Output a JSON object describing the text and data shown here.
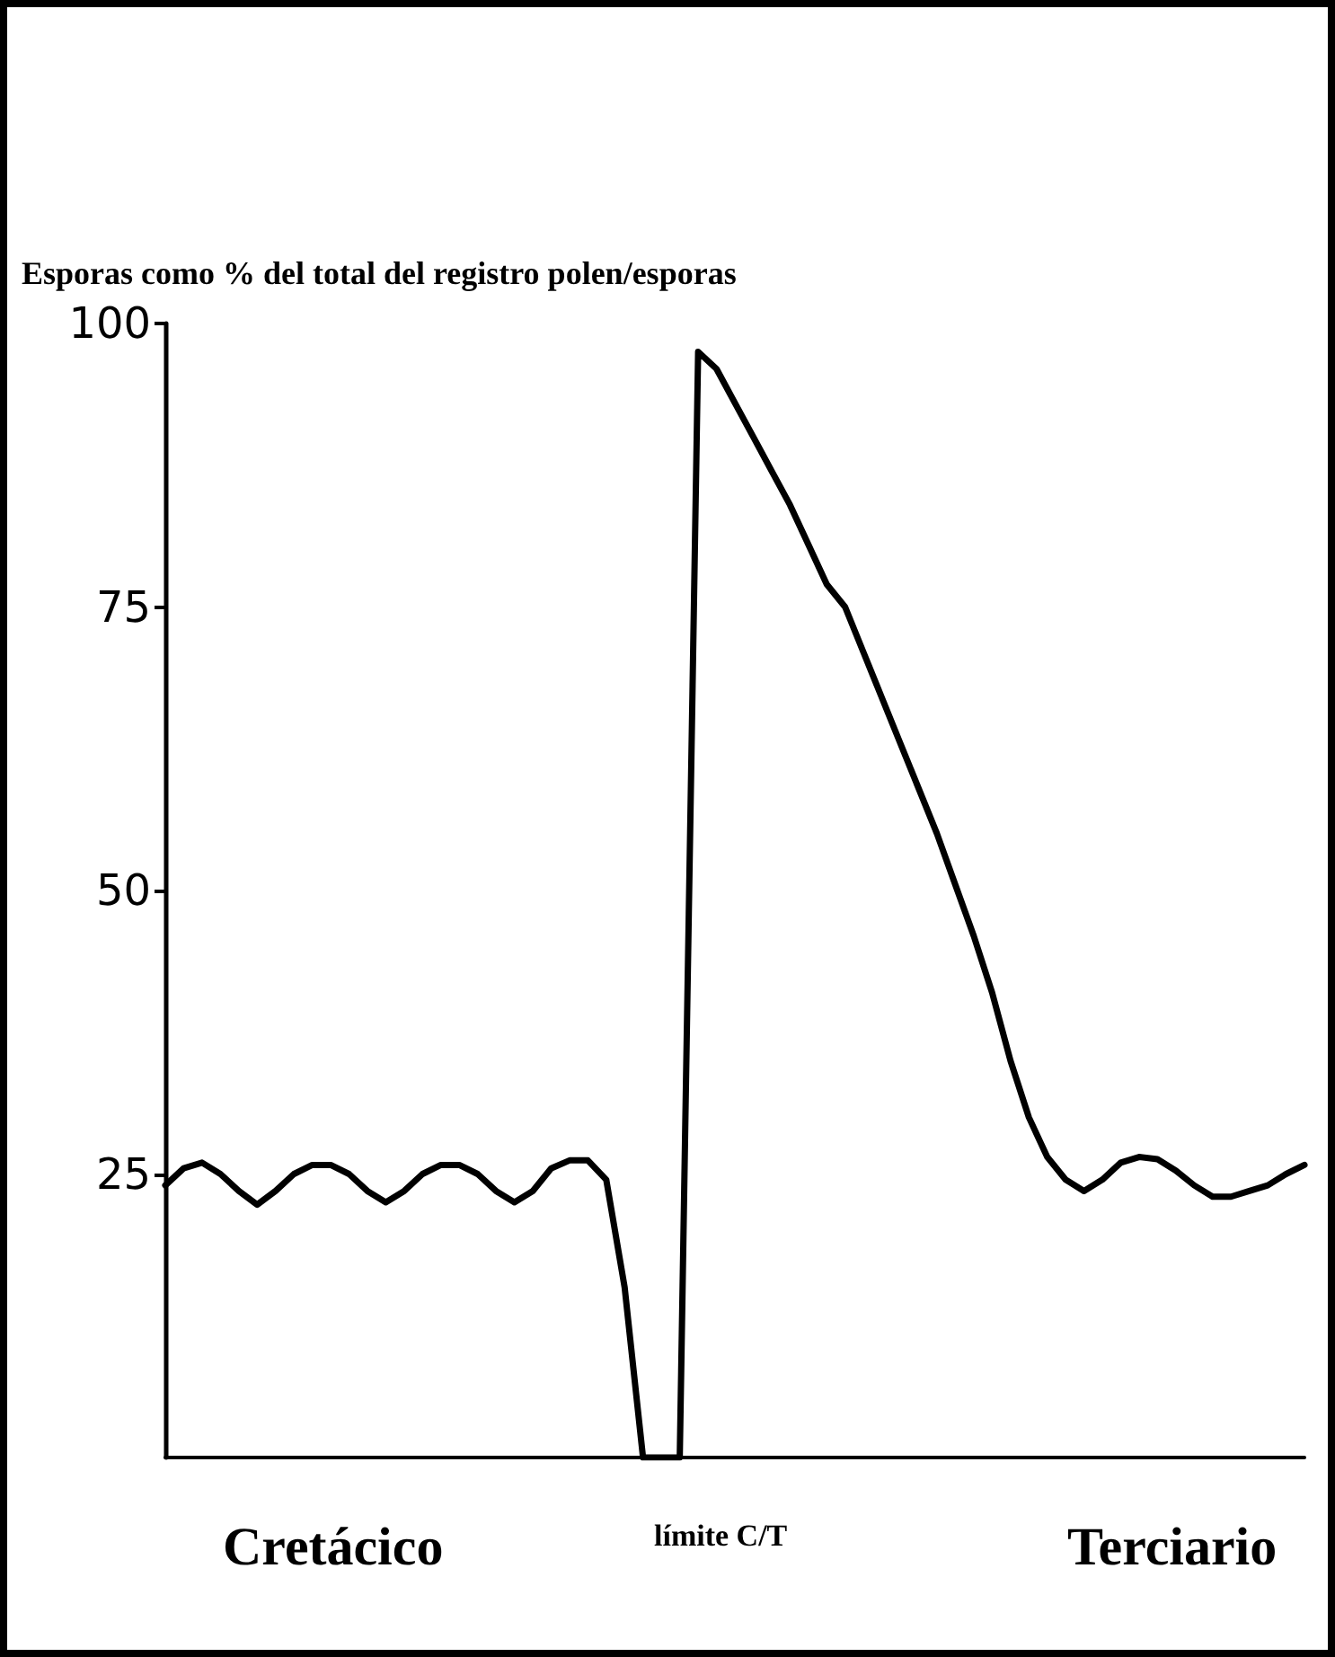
{
  "chart_data": {
    "type": "line",
    "ylabel": "Esporas como % del total del registro polen/esporas",
    "categories": [
      null,
      null,
      null,
      null,
      null,
      null,
      null,
      null,
      null,
      null,
      null,
      null,
      null,
      null,
      null,
      null,
      null,
      null,
      null,
      null,
      null,
      null,
      null,
      null,
      null,
      null,
      null,
      null,
      null,
      null,
      null,
      null,
      null,
      null,
      null,
      null,
      null,
      null,
      null,
      null,
      null,
      null,
      null,
      null,
      null,
      null,
      null,
      null,
      null,
      null,
      null,
      null,
      null,
      null,
      null,
      null,
      null,
      null,
      null,
      null,
      null,
      null,
      null
    ],
    "series": [
      {
        "color": "#000000",
        "values": [
          24,
          25.5,
          26,
          25,
          23.5,
          22.3,
          23.5,
          25,
          25.8,
          25.8,
          25,
          23.5,
          22.5,
          23.5,
          25,
          25.8,
          25.8,
          25,
          23.5,
          22.5,
          23.5,
          25.5,
          26.2,
          26.2,
          24.5,
          15,
          0,
          0,
          0,
          97.5,
          96,
          93,
          90,
          87,
          84,
          80.5,
          77,
          75,
          71,
          67,
          63,
          59,
          55,
          50.5,
          46,
          41,
          35,
          30,
          26.5,
          24.5,
          23.5,
          24.5,
          26,
          26.5,
          26.3,
          25.3,
          24,
          23,
          23,
          23.5,
          24,
          25,
          25.8
        ]
      }
    ],
    "ylim": [
      0,
      100
    ],
    "yticks": [
      25,
      50,
      75,
      100
    ],
    "grid": false,
    "marker": "none",
    "line_style": "solid",
    "tick_labels": "y",
    "annotations": [
      "Cretácico",
      "límite C/T",
      "Terciario"
    ]
  }
}
